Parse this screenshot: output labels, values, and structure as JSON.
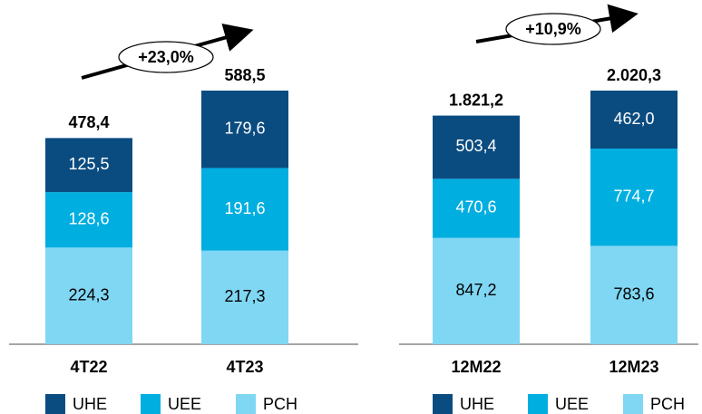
{
  "chart_data": [
    {
      "type": "bar",
      "stacked": true,
      "categories": [
        "4T22",
        "4T23"
      ],
      "series": [
        {
          "name": "PCH",
          "color": "#80d7f3",
          "values": [
            224.3,
            217.3
          ],
          "value_labels": [
            "224,3",
            "217,3"
          ]
        },
        {
          "name": "UEE",
          "color": "#00aee0",
          "values": [
            128.6,
            191.6
          ],
          "value_labels": [
            "128,6",
            "191,6"
          ]
        },
        {
          "name": "UHE",
          "color": "#0b4c80",
          "values": [
            125.5,
            179.6
          ],
          "value_labels": [
            "125,5",
            "179,6"
          ]
        }
      ],
      "totals": [
        478.4,
        588.5
      ],
      "total_labels": [
        "478,4",
        "588,5"
      ],
      "annotation": "+23,0%",
      "legend_order": [
        "UHE",
        "UEE",
        "PCH"
      ]
    },
    {
      "type": "bar",
      "stacked": true,
      "categories": [
        "12M22",
        "12M23"
      ],
      "series": [
        {
          "name": "PCH",
          "color": "#80d7f3",
          "values": [
            847.2,
            783.6
          ],
          "value_labels": [
            "847,2",
            "783,6"
          ]
        },
        {
          "name": "UEE",
          "color": "#00aee0",
          "values": [
            470.6,
            774.7
          ],
          "value_labels": [
            "470,6",
            "774,7"
          ]
        },
        {
          "name": "UHE",
          "color": "#0b4c80",
          "values": [
            503.4,
            462.0
          ],
          "value_labels": [
            "503,4",
            "462,0"
          ]
        }
      ],
      "totals": [
        1821.2,
        2020.3
      ],
      "total_labels": [
        "1.821,2",
        "2.020,3"
      ],
      "annotation": "+10,9%",
      "legend_order": [
        "UHE",
        "UEE",
        "PCH"
      ]
    }
  ]
}
